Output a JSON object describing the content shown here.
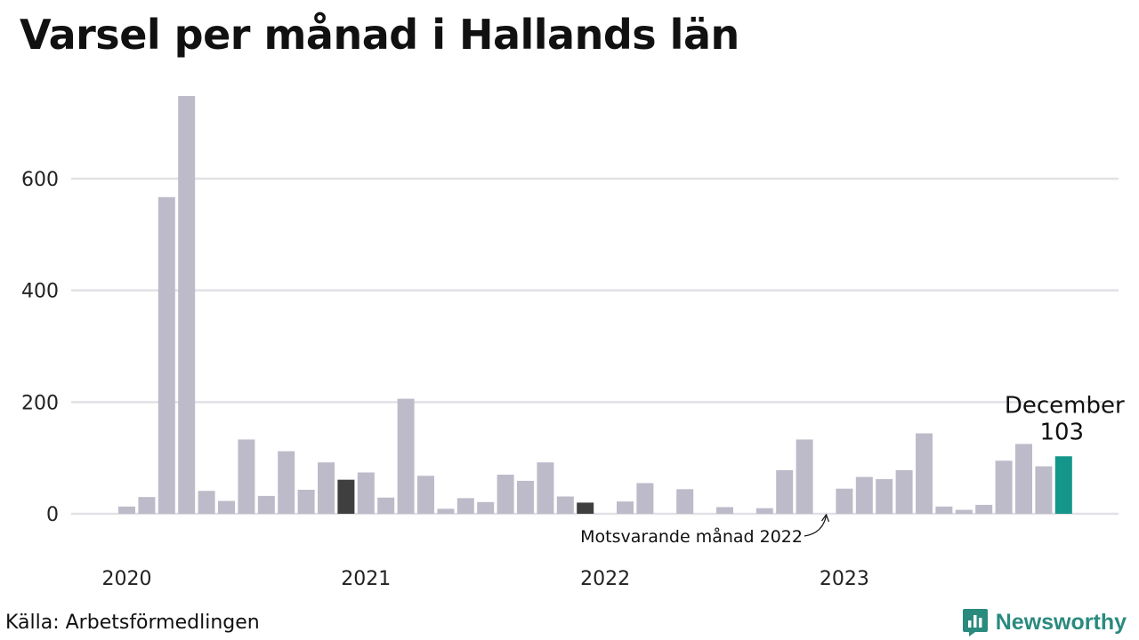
{
  "chart_data": {
    "type": "bar",
    "title": "Varsel per månad i Hallands län",
    "xlabel": "",
    "ylabel": "",
    "ylim": [
      0,
      750
    ],
    "yticks": [
      0,
      200,
      400,
      600
    ],
    "ytick_labels": [
      "0",
      "200",
      "400",
      "600"
    ],
    "year_labels": [
      "2020",
      "2021",
      "2022",
      "2023"
    ],
    "grid": true,
    "legend": "none",
    "start_month": "2020-01",
    "x": [
      "2020-01",
      "2020-02",
      "2020-03",
      "2020-04",
      "2020-05",
      "2020-06",
      "2020-07",
      "2020-08",
      "2020-09",
      "2020-10",
      "2020-11",
      "2020-12",
      "2021-01",
      "2021-02",
      "2021-03",
      "2021-04",
      "2021-05",
      "2021-06",
      "2021-07",
      "2021-08",
      "2021-09",
      "2021-10",
      "2021-11",
      "2021-12",
      "2022-01",
      "2022-02",
      "2022-03",
      "2022-04",
      "2022-05",
      "2022-06",
      "2022-07",
      "2022-08",
      "2022-09",
      "2022-10",
      "2022-11",
      "2022-12",
      "2023-01",
      "2023-02",
      "2023-03",
      "2023-04",
      "2023-05",
      "2023-06",
      "2023-07",
      "2023-08",
      "2023-09",
      "2023-10",
      "2023-11",
      "2023-12"
    ],
    "values": [
      13,
      30,
      567,
      748,
      41,
      23,
      133,
      32,
      112,
      43,
      92,
      61,
      74,
      29,
      206,
      68,
      9,
      28,
      21,
      70,
      59,
      92,
      31,
      20,
      0,
      22,
      55,
      0,
      44,
      0,
      12,
      0,
      10,
      78,
      133,
      0,
      45,
      66,
      62,
      78,
      144,
      13,
      7,
      16,
      95,
      125,
      85,
      103
    ],
    "colors": {
      "default": "#bdbbc9",
      "previous_year_same_month": "#3f3f3f",
      "current": "#14968a"
    },
    "highlight_dark_indices": [
      11,
      23
    ],
    "highlight_current_index": 47,
    "annotations": {
      "current_month_label": "December",
      "current_value_label": "103",
      "previous_year_label": "Motsvarande månad 2022"
    }
  },
  "footer": {
    "source": "Källa: Arbetsförmedlingen",
    "brand": "Newsworthy"
  },
  "icons": {
    "brand_logo": "newsworthy-logo-icon"
  }
}
